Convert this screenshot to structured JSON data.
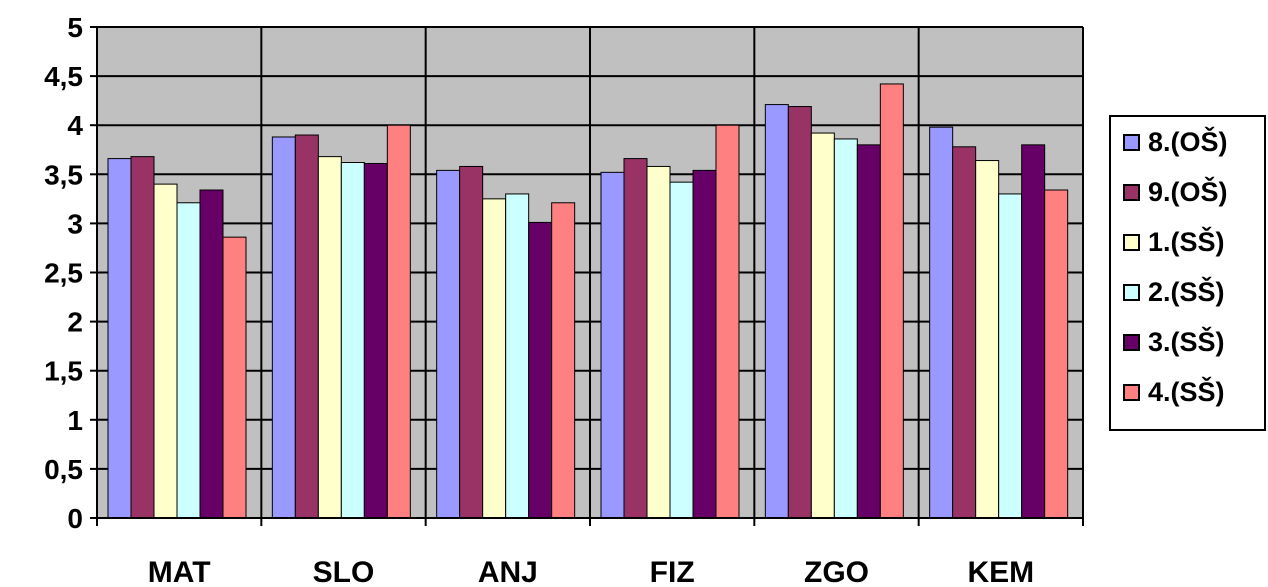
{
  "chart_data": {
    "type": "bar",
    "categories": [
      "MAT",
      "SLO",
      "ANJ",
      "FIZ",
      "ZGO",
      "KEM"
    ],
    "ylim": [
      0,
      5
    ],
    "y_ticks": [
      "0",
      "0,5",
      "1",
      "1,5",
      "2",
      "2,5",
      "3",
      "3,5",
      "4",
      "4,5",
      "5"
    ],
    "y_tick_values": [
      0,
      0.5,
      1,
      1.5,
      2,
      2.5,
      3,
      3.5,
      4,
      4.5,
      5
    ],
    "grid": true,
    "legend_position": "right",
    "plot_background": "#c0c0c0",
    "series": [
      {
        "name": "8.(OŠ)",
        "color": "#9999ff",
        "values": [
          3.66,
          3.88,
          3.54,
          3.52,
          4.21,
          3.98
        ]
      },
      {
        "name": "9.(OŠ)",
        "color": "#993366",
        "values": [
          3.68,
          3.9,
          3.58,
          3.66,
          4.19,
          3.78
        ]
      },
      {
        "name": "1.(SŠ)",
        "color": "#ffffcc",
        "values": [
          3.4,
          3.68,
          3.25,
          3.58,
          3.92,
          3.64
        ]
      },
      {
        "name": "2.(SŠ)",
        "color": "#ccffff",
        "values": [
          3.21,
          3.62,
          3.3,
          3.42,
          3.86,
          3.3
        ]
      },
      {
        "name": "3.(SŠ)",
        "color": "#660066",
        "values": [
          3.34,
          3.61,
          3.01,
          3.54,
          3.8,
          3.8
        ]
      },
      {
        "name": "4.(SŠ)",
        "color": "#ff8080",
        "values": [
          2.86,
          4.0,
          3.21,
          4.0,
          4.42,
          3.34
        ]
      }
    ]
  }
}
